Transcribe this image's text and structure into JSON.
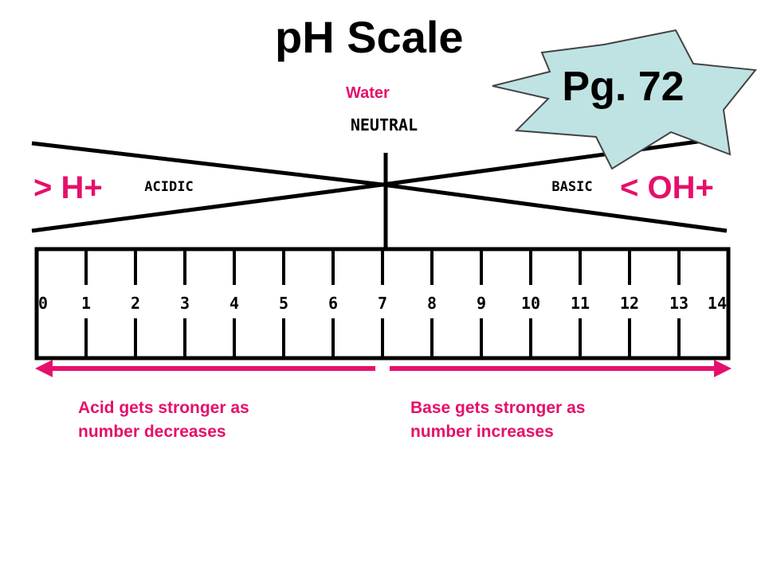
{
  "title": "pH Scale",
  "badge": {
    "text": "Pg. 72",
    "color": "#bfe3e3"
  },
  "water_label": "Water",
  "neutral_label": "NEUTRAL",
  "acidic_label": "ACIDIC",
  "basic_label": "BASIC",
  "left_marker": "> H+",
  "right_marker": "< OH+",
  "scale": {
    "ticks": [
      "0",
      "1",
      "2",
      "3",
      "4",
      "5",
      "6",
      "7",
      "8",
      "9",
      "10",
      "11",
      "12",
      "13",
      "14"
    ]
  },
  "captions": {
    "acid_line1": "Acid gets stronger as",
    "acid_line2": "number decreases",
    "base_line1": "Base gets stronger as",
    "base_line2": "number increases"
  },
  "colors": {
    "accent": "#e5106a",
    "ink": "#000000"
  }
}
